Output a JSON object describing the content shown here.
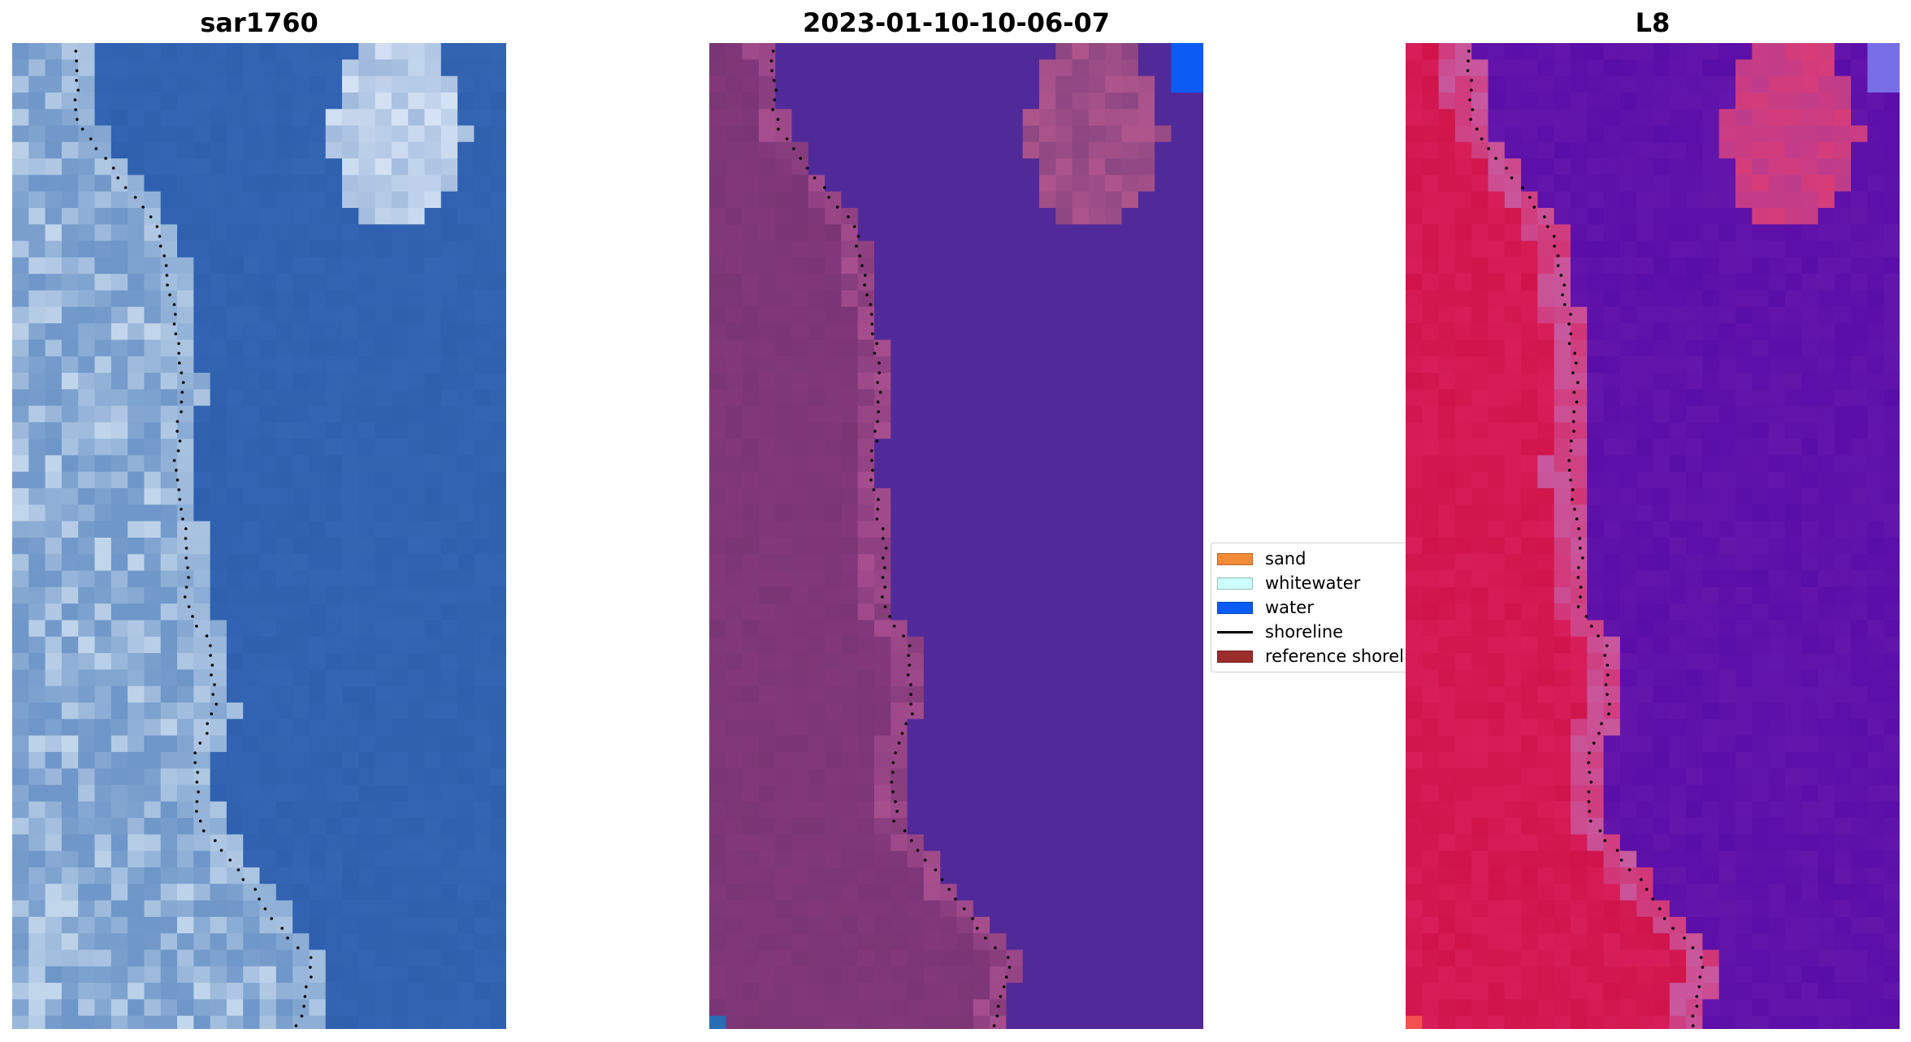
{
  "panels": [
    {
      "title": "sar1760",
      "palette": "rgb"
    },
    {
      "title": "2023-01-10-10-06-07",
      "palette": "classified"
    },
    {
      "title": "L8",
      "palette": "ndwi"
    }
  ],
  "legend": {
    "items": [
      {
        "label": "sand",
        "color": "#f28b3a",
        "kind": "patch"
      },
      {
        "label": "whitewater",
        "color": "#ccfff9",
        "kind": "patch"
      },
      {
        "label": "water",
        "color": "#0a5cf5",
        "kind": "patch"
      },
      {
        "label": "shoreline",
        "color": "#000000",
        "kind": "line"
      },
      {
        "label": "reference shoreline",
        "color": "#9b2d2d",
        "kind": "patch"
      }
    ]
  },
  "colors": {
    "water_class": "#512a9a",
    "land_class": "#7a3575",
    "ndwi_land": "#d81e5a",
    "ndwi_water": "#5a0ea8",
    "rgb_ocean": "#2f60ae",
    "rgb_land": "#7a9cc8"
  }
}
